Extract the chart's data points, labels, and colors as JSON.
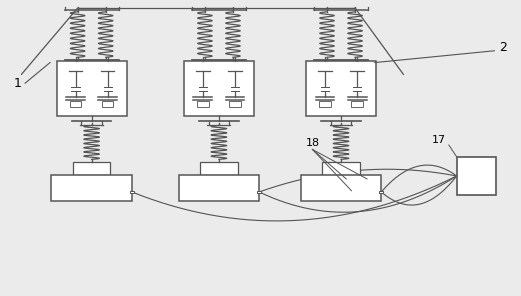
{
  "bg_color": "#ebebeb",
  "line_color": "#555555",
  "box_fill": "#ffffff",
  "label_1": "1",
  "label_2": "2",
  "label_17": "17",
  "label_18": "18",
  "phase_centers": [
    0.175,
    0.42,
    0.655
  ],
  "figsize": [
    5.21,
    2.96
  ],
  "dpi": 100,
  "lw": 0.9
}
